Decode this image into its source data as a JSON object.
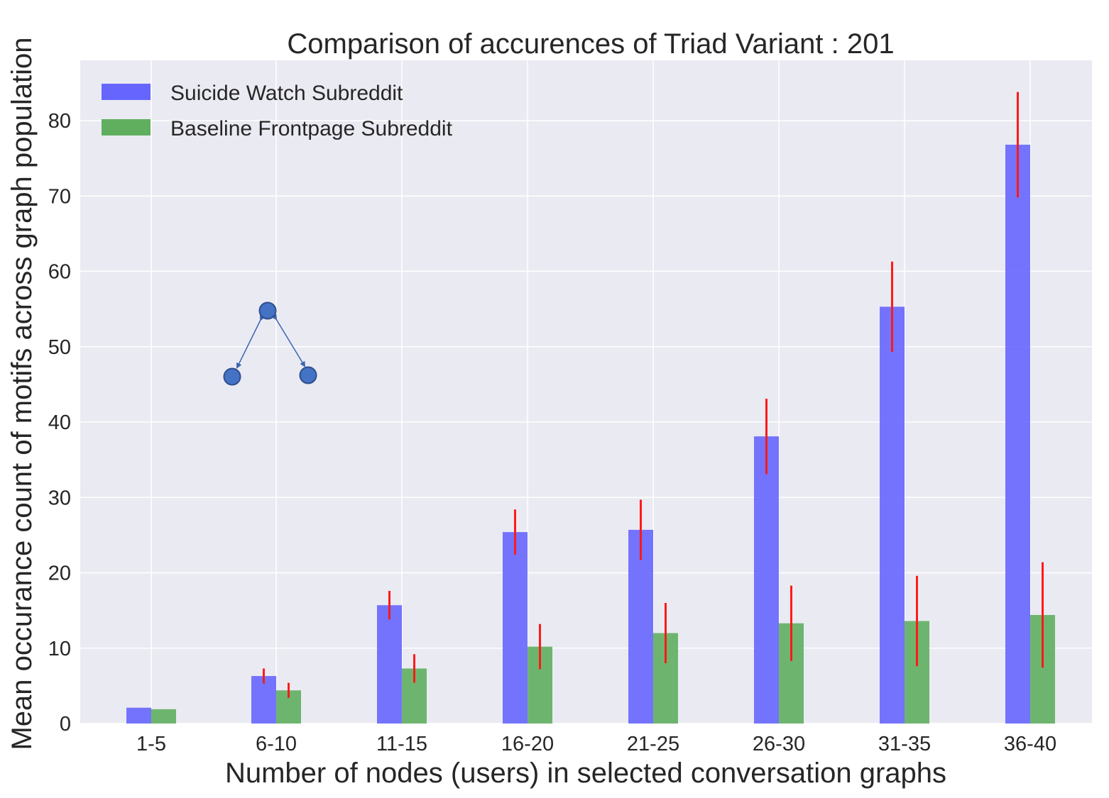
{
  "chart_data": {
    "type": "bar",
    "title": "Comparison of accurences of Triad Variant  : 201",
    "xlabel": "Number of nodes (users) in selected conversation graphs",
    "ylabel": "Mean occurance count of motifs across graph population",
    "categories": [
      "1-5",
      "6-10",
      "11-15",
      "16-20",
      "21-25",
      "26-30",
      "31-35",
      "36-40"
    ],
    "ylim": [
      0,
      88
    ],
    "yticks": [
      0,
      10,
      20,
      30,
      40,
      50,
      60,
      70,
      80
    ],
    "grid": true,
    "legend_position": "top-left",
    "series": [
      {
        "name": "Suicide Watch Subreddit",
        "color": "#6666ff",
        "values": [
          2.1,
          6.3,
          15.7,
          25.4,
          25.7,
          38.1,
          55.3,
          76.8
        ],
        "errors": [
          0,
          1.0,
          1.9,
          3.0,
          4.0,
          5.0,
          6.0,
          7.0
        ]
      },
      {
        "name": "Baseline Frontpage Subreddit",
        "color": "#5faf5f",
        "values": [
          1.9,
          4.4,
          7.3,
          10.2,
          12.0,
          13.3,
          13.6,
          14.4
        ],
        "errors": [
          0,
          1.0,
          1.9,
          3.0,
          4.0,
          5.0,
          6.0,
          7.0
        ]
      }
    ],
    "error_bar_color": "#ff1a1a",
    "annotation": "triad-motif-201-diagram",
    "plot_background": "#eaeaf2"
  }
}
